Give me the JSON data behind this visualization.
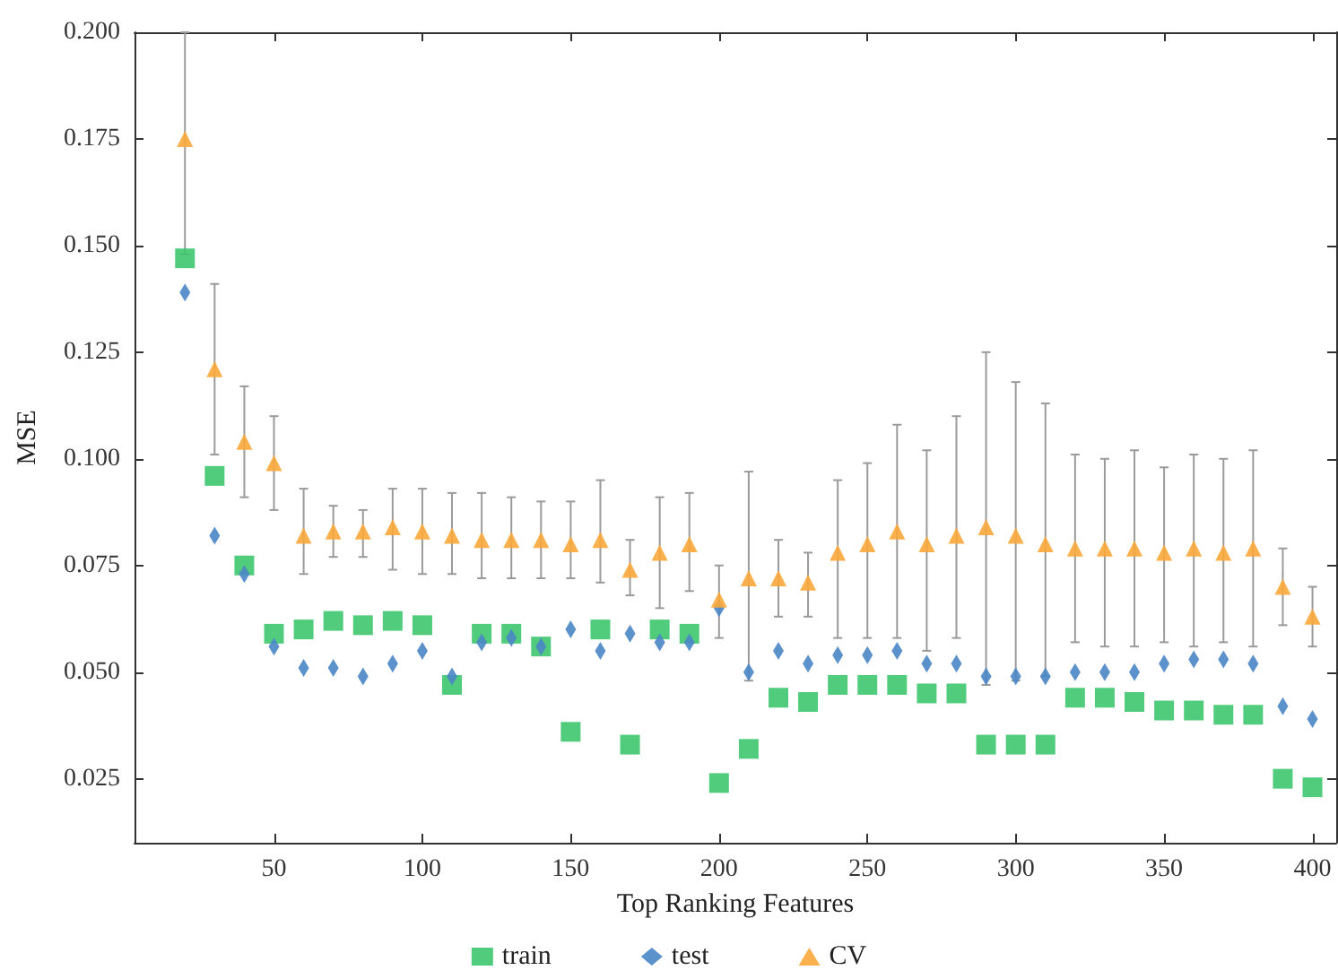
{
  "chart_data": {
    "type": "scatter",
    "xlabel": "Top Ranking Features",
    "ylabel": "MSE",
    "x": [
      20,
      30,
      40,
      50,
      60,
      70,
      80,
      90,
      100,
      110,
      120,
      130,
      140,
      150,
      160,
      170,
      180,
      190,
      200,
      210,
      220,
      230,
      240,
      250,
      260,
      270,
      280,
      290,
      300,
      310,
      320,
      330,
      340,
      350,
      360,
      370,
      380,
      390,
      400
    ],
    "series": [
      {
        "name": "train",
        "color": "#3ec66e",
        "marker": "square",
        "values": [
          0.147,
          0.096,
          0.075,
          0.059,
          0.06,
          0.062,
          0.061,
          0.062,
          0.061,
          0.047,
          0.059,
          0.059,
          0.056,
          0.036,
          0.06,
          0.033,
          0.06,
          0.059,
          0.024,
          0.032,
          0.044,
          0.043,
          0.047,
          0.047,
          0.047,
          0.045,
          0.045,
          0.033,
          0.033,
          0.033,
          0.044,
          0.044,
          0.043,
          0.041,
          0.041,
          0.04,
          0.04,
          0.025,
          0.023
        ]
      },
      {
        "name": "test",
        "color": "#4a86c5",
        "marker": "diamond",
        "values": [
          0.139,
          0.082,
          0.073,
          0.056,
          0.051,
          0.051,
          0.049,
          0.052,
          0.055,
          0.049,
          0.057,
          0.058,
          0.056,
          0.06,
          0.055,
          0.059,
          0.057,
          0.057,
          0.065,
          0.05,
          0.055,
          0.052,
          0.054,
          0.054,
          0.055,
          0.052,
          0.052,
          0.049,
          0.049,
          0.049,
          0.05,
          0.05,
          0.05,
          0.052,
          0.053,
          0.053,
          0.052,
          0.042,
          0.039
        ]
      },
      {
        "name": "CV",
        "color": "#f9a93a",
        "marker": "triangle",
        "values": [
          0.175,
          0.121,
          0.104,
          0.099,
          0.082,
          0.083,
          0.083,
          0.084,
          0.083,
          0.082,
          0.081,
          0.081,
          0.081,
          0.08,
          0.081,
          0.074,
          0.078,
          0.08,
          0.067,
          0.072,
          0.072,
          0.071,
          0.078,
          0.08,
          0.083,
          0.08,
          0.082,
          0.084,
          0.082,
          0.08,
          0.079,
          0.079,
          0.079,
          0.078,
          0.079,
          0.078,
          0.079,
          0.07,
          0.063
        ],
        "errors": [
          [
            0.148,
            0.2
          ],
          [
            0.101,
            0.141
          ],
          [
            0.091,
            0.117
          ],
          [
            0.088,
            0.11
          ],
          [
            0.073,
            0.093
          ],
          [
            0.077,
            0.089
          ],
          [
            0.077,
            0.088
          ],
          [
            0.074,
            0.093
          ],
          [
            0.073,
            0.093
          ],
          [
            0.073,
            0.092
          ],
          [
            0.072,
            0.092
          ],
          [
            0.072,
            0.091
          ],
          [
            0.072,
            0.09
          ],
          [
            0.072,
            0.09
          ],
          [
            0.071,
            0.095
          ],
          [
            0.068,
            0.081
          ],
          [
            0.065,
            0.091
          ],
          [
            0.069,
            0.092
          ],
          [
            0.058,
            0.075
          ],
          [
            0.048,
            0.097
          ],
          [
            0.063,
            0.081
          ],
          [
            0.063,
            0.078
          ],
          [
            0.058,
            0.095
          ],
          [
            0.058,
            0.099
          ],
          [
            0.058,
            0.108
          ],
          [
            0.055,
            0.102
          ],
          [
            0.058,
            0.11
          ],
          [
            0.047,
            0.125
          ],
          [
            0.048,
            0.118
          ],
          [
            0.049,
            0.113
          ],
          [
            0.057,
            0.101
          ],
          [
            0.056,
            0.1
          ],
          [
            0.056,
            0.102
          ],
          [
            0.057,
            0.098
          ],
          [
            0.056,
            0.101
          ],
          [
            0.057,
            0.1
          ],
          [
            0.056,
            0.102
          ],
          [
            0.061,
            0.079
          ],
          [
            0.056,
            0.07
          ]
        ]
      }
    ],
    "xlim": [
      3,
      408
    ],
    "xticks": [
      50,
      100,
      150,
      200,
      250,
      300,
      350,
      400
    ],
    "ylim": [
      0.01,
      0.2
    ],
    "yticks": [
      {
        "value": 0.025,
        "label": "0.025"
      },
      {
        "value": 0.05,
        "label": "0.050"
      },
      {
        "value": 0.075,
        "label": "0.075"
      },
      {
        "value": 0.1,
        "label": "0.100"
      },
      {
        "value": 0.125,
        "label": "0.125"
      },
      {
        "value": 0.15,
        "label": "0.150"
      },
      {
        "value": 0.175,
        "label": "0.175"
      },
      {
        "value": 0.2,
        "label": "0.200"
      }
    ],
    "grid": false,
    "legend": "bottom"
  }
}
